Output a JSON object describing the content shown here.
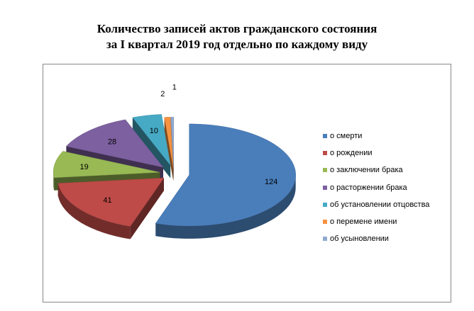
{
  "title_lines": [
    "Количество записей актов гражданского состояния",
    "за I квартал 2019 год отдельно по каждому виду"
  ],
  "chart_data": {
    "type": "pie",
    "title": "Количество записей актов гражданского состояния за I квартал 2019 год отдельно по каждому виду",
    "legend_position": "right",
    "exploded": true,
    "three_d": true,
    "categories": [
      "о смерти",
      "о рождении",
      "о заключении брака",
      "о расторжении брака",
      "об установлении отцовства",
      "о перемене имени",
      "об усыновлении"
    ],
    "values": [
      124,
      41,
      19,
      28,
      10,
      2,
      1
    ],
    "colors": [
      "#4a7ebb",
      "#be4b48",
      "#98b954",
      "#7d60a0",
      "#46aac5",
      "#f69240",
      "#92a9cf"
    ]
  }
}
